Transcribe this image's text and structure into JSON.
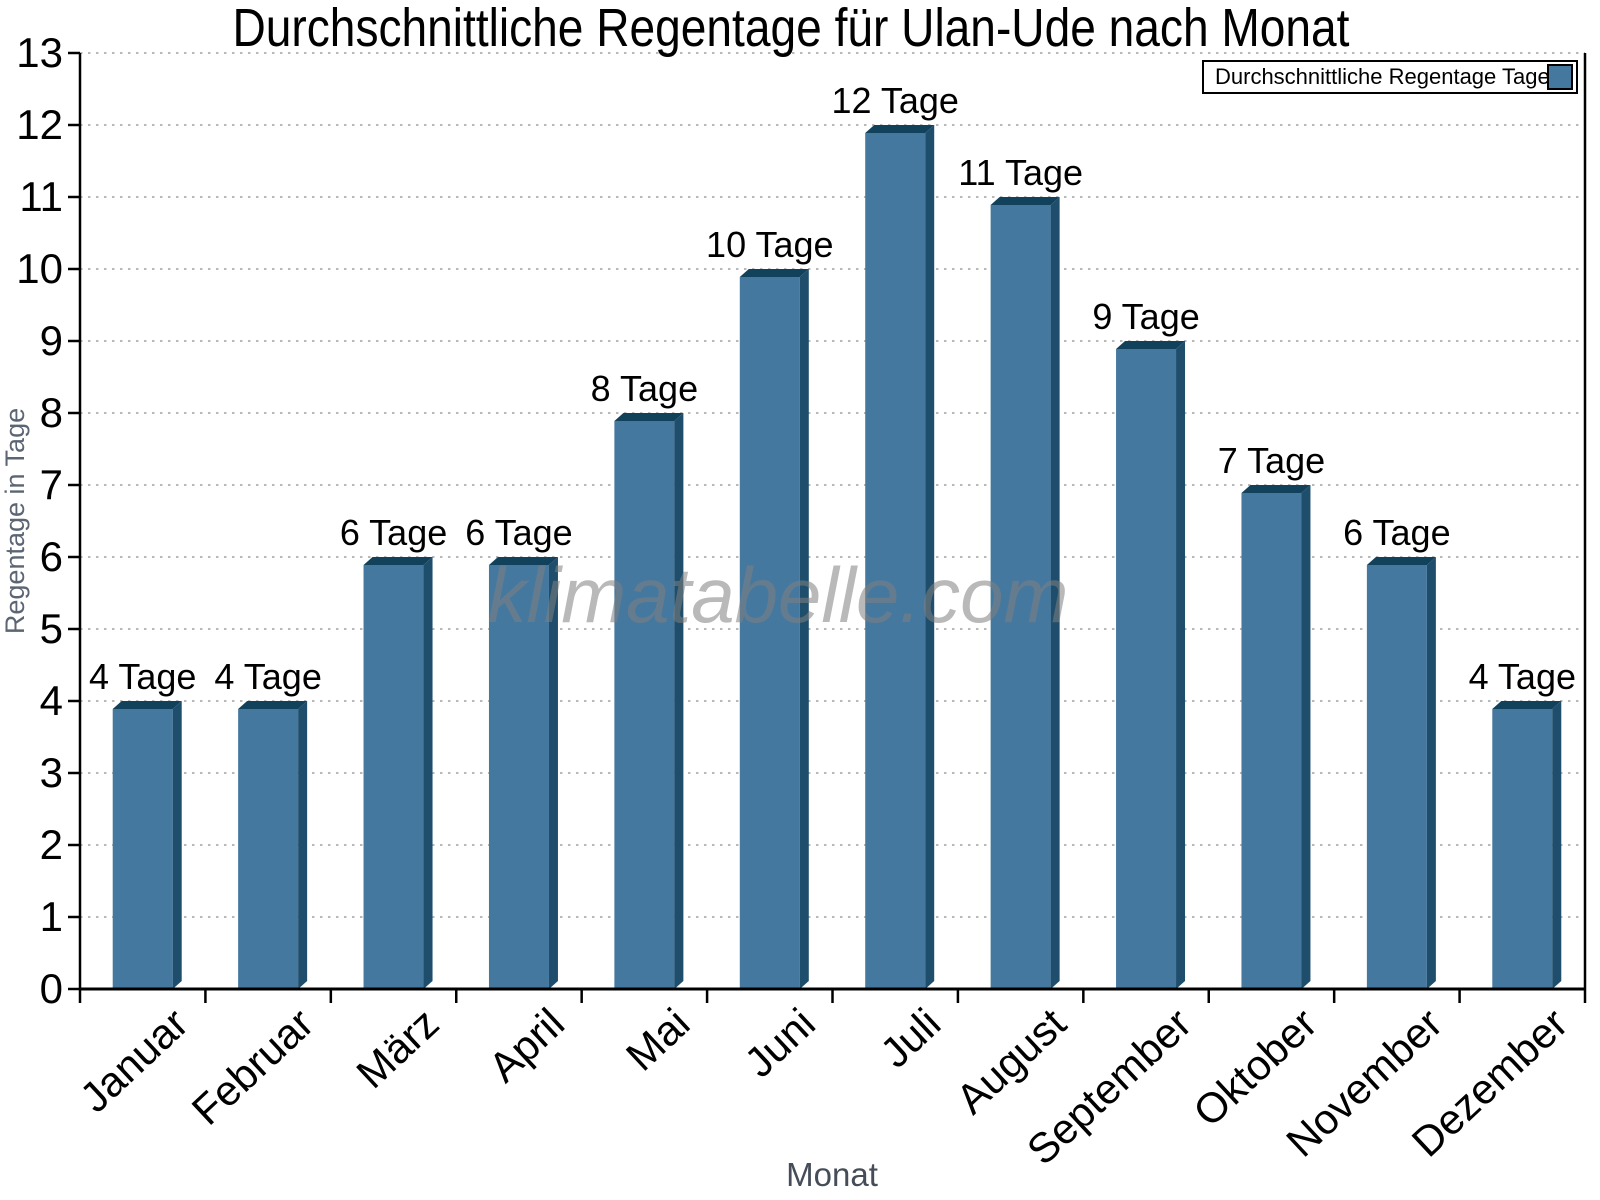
{
  "watermark": {
    "text": "klimatabelle.com"
  },
  "chart_data": {
    "type": "bar",
    "title": "Durchschnittliche Regentage für Ulan-Ude nach Monat",
    "xlabel": "Monat",
    "ylabel": "Regentage in Tage",
    "categories": [
      "Januar",
      "Februar",
      "März",
      "April",
      "Mai",
      "Juni",
      "Juli",
      "August",
      "September",
      "Oktober",
      "November",
      "Dezember"
    ],
    "values": [
      4,
      4,
      6,
      6,
      8,
      10,
      12,
      11,
      9,
      7,
      6,
      4
    ],
    "bar_labels": [
      "4 Tage",
      "4 Tage",
      "6 Tage",
      "6 Tage",
      "8 Tage",
      "10 Tage",
      "12 Tage",
      "11 Tage",
      "9 Tage",
      "7 Tage",
      "6 Tage",
      "4 Tage"
    ],
    "ylim": [
      0,
      13
    ],
    "ytick_step": 1,
    "grid": "horizontal-dotted",
    "legend": {
      "label": "Durchschnittliche Regentage Tage",
      "position": "top-right"
    },
    "colors": {
      "bar_face": "#45789f",
      "bar_top": "#12415c",
      "bar_side": "#1e4e6c",
      "grid": "#b8b8b8",
      "axis": "#000000",
      "tick_label": "#000000",
      "value_label": "#000000",
      "xlabel": "#454d58",
      "ylabel": "#5b6573",
      "watermark": "rgba(128,128,128,0.55)",
      "legend_border": "#000000",
      "background": "#ffffff"
    }
  }
}
